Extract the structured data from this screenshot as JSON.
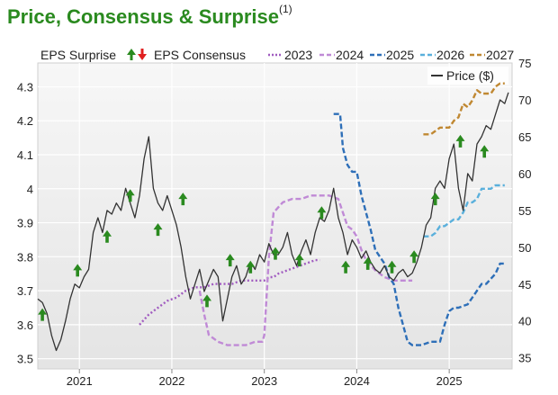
{
  "title": "Price, Consensus & Surprise",
  "title_note": "(1)",
  "chart_data": {
    "type": "line",
    "title": "Price, Consensus & Surprise",
    "legend": {
      "surprise_label": "EPS Surprise",
      "consensus_label": "EPS Consensus",
      "years": [
        "2023",
        "2024",
        "2025",
        "2026",
        "2027"
      ],
      "price_label": "Price ($)",
      "placement": "top"
    },
    "x_ticks": [
      "2021",
      "2022",
      "2023",
      "2024",
      "2025"
    ],
    "x_range": [
      2020.55,
      2025.68
    ],
    "left_axis": {
      "ticks": [
        "3.5",
        "3.6",
        "3.7",
        "3.8",
        "3.9",
        "4",
        "4.1",
        "4.2",
        "4.3"
      ],
      "ylim": [
        3.47,
        4.37
      ]
    },
    "right_axis": {
      "ticks": [
        "35",
        "40",
        "45",
        "50",
        "55",
        "60",
        "65",
        "70",
        "75"
      ],
      "ylim": [
        33.5,
        75
      ]
    },
    "grid": true,
    "colors": {
      "title": "#2a8a1f",
      "price": "#333333",
      "surprise_up": "#2a8a1f",
      "surprise_down": "#e02020",
      "2023": "#a05bc0",
      "2024": "#c08ad6",
      "2025": "#2e6fb8",
      "2026": "#5ab0dc",
      "2027": "#c08832"
    },
    "price_series": {
      "name": "Price ($)",
      "x": [
        2020.55,
        2020.6,
        2020.65,
        2020.7,
        2020.75,
        2020.8,
        2020.85,
        2020.9,
        2020.95,
        2021.0,
        2021.05,
        2021.1,
        2021.15,
        2021.2,
        2021.25,
        2021.3,
        2021.35,
        2021.4,
        2021.45,
        2021.5,
        2021.55,
        2021.6,
        2021.65,
        2021.7,
        2021.75,
        2021.8,
        2021.85,
        2021.9,
        2021.95,
        2022.0,
        2022.05,
        2022.1,
        2022.15,
        2022.2,
        2022.25,
        2022.3,
        2022.35,
        2022.4,
        2022.45,
        2022.5,
        2022.55,
        2022.6,
        2022.65,
        2022.7,
        2022.75,
        2022.8,
        2022.85,
        2022.9,
        2022.95,
        2023.0,
        2023.05,
        2023.1,
        2023.15,
        2023.2,
        2023.25,
        2023.3,
        2023.35,
        2023.4,
        2023.45,
        2023.5,
        2023.55,
        2023.6,
        2023.65,
        2023.7,
        2023.75,
        2023.8,
        2023.85,
        2023.9,
        2023.95,
        2024.0,
        2024.05,
        2024.1,
        2024.15,
        2024.2,
        2024.25,
        2024.3,
        2024.35,
        2024.4,
        2024.45,
        2024.5,
        2024.55,
        2024.6,
        2024.65,
        2024.7,
        2024.75,
        2024.8,
        2024.85,
        2024.9,
        2024.95,
        2025.0,
        2025.05,
        2025.1,
        2025.15,
        2025.2,
        2025.25,
        2025.3,
        2025.35,
        2025.4,
        2025.45,
        2025.5,
        2025.55,
        2025.6,
        2025.64
      ],
      "values": [
        43,
        42.5,
        41,
        38,
        36,
        37.5,
        40,
        43,
        45,
        44.5,
        46,
        47,
        52,
        54,
        52,
        55,
        54.5,
        56,
        55,
        58,
        56,
        54,
        57,
        62,
        65,
        58,
        56,
        55,
        57,
        55,
        53,
        50,
        46,
        43,
        45,
        47,
        44,
        45.5,
        47,
        46,
        40,
        43,
        46,
        47.5,
        45,
        46,
        48,
        47,
        49,
        48,
        50.5,
        49,
        49,
        50,
        52,
        49,
        47.5,
        49.5,
        51,
        49,
        52,
        54,
        53.5,
        55,
        58,
        54,
        52,
        49,
        51,
        50,
        48.5,
        49.5,
        48,
        47,
        46.5,
        47.5,
        46,
        45.5,
        46.5,
        47,
        46,
        46.5,
        48,
        50,
        53,
        54,
        58,
        59,
        58,
        62,
        64,
        58,
        55,
        60,
        59,
        64,
        65,
        66.5,
        66,
        68,
        70,
        69.5,
        71
      ]
    },
    "consensus_series": [
      {
        "name": "2023",
        "style": "dotted",
        "x": [
          2021.65,
          2021.75,
          2021.85,
          2021.95,
          2022.05,
          2022.15,
          2022.25,
          2022.35,
          2022.45,
          2022.55,
          2022.65,
          2022.75,
          2022.85,
          2022.95,
          2023.0,
          2023.05,
          2023.1,
          2023.15,
          2023.25,
          2023.35,
          2023.45,
          2023.55,
          2023.6
        ],
        "values": [
          3.6,
          3.63,
          3.65,
          3.67,
          3.68,
          3.7,
          3.71,
          3.71,
          3.72,
          3.72,
          3.72,
          3.73,
          3.73,
          3.73,
          3.73,
          3.74,
          3.74,
          3.75,
          3.76,
          3.77,
          3.78,
          3.79,
          3.79
        ]
      },
      {
        "name": "2024",
        "style": "dashed",
        "x": [
          2022.3,
          2022.35,
          2022.4,
          2022.5,
          2022.6,
          2022.7,
          2022.8,
          2022.9,
          2022.98,
          2023.0,
          2023.05,
          2023.1,
          2023.2,
          2023.3,
          2023.4,
          2023.5,
          2023.6,
          2023.7,
          2023.8,
          2023.85,
          2023.9,
          2023.95,
          2024.0,
          2024.05,
          2024.1,
          2024.2,
          2024.3,
          2024.4,
          2024.5,
          2024.6
        ],
        "values": [
          3.7,
          3.63,
          3.57,
          3.55,
          3.54,
          3.54,
          3.54,
          3.55,
          3.55,
          3.57,
          3.8,
          3.93,
          3.96,
          3.97,
          3.97,
          3.98,
          3.98,
          3.98,
          3.97,
          3.93,
          3.89,
          3.88,
          3.86,
          3.82,
          3.79,
          3.76,
          3.74,
          3.73,
          3.73,
          3.73
        ]
      },
      {
        "name": "2025",
        "style": "dashed",
        "x": [
          2023.75,
          2023.82,
          2023.85,
          2023.9,
          2023.95,
          2024.0,
          2024.05,
          2024.1,
          2024.15,
          2024.2,
          2024.3,
          2024.35,
          2024.4,
          2024.45,
          2024.5,
          2024.55,
          2024.6,
          2024.7,
          2024.8,
          2024.85,
          2024.9,
          2024.95,
          2025.0,
          2025.05,
          2025.1,
          2025.2,
          2025.3,
          2025.35,
          2025.4,
          2025.5,
          2025.55,
          2025.6
        ],
        "values": [
          4.22,
          4.22,
          4.12,
          4.07,
          4.05,
          4.05,
          3.98,
          3.93,
          3.88,
          3.82,
          3.78,
          3.74,
          3.72,
          3.65,
          3.6,
          3.55,
          3.54,
          3.54,
          3.55,
          3.55,
          3.55,
          3.6,
          3.64,
          3.65,
          3.65,
          3.66,
          3.7,
          3.72,
          3.72,
          3.75,
          3.78,
          3.78
        ]
      },
      {
        "name": "2026",
        "style": "dashed",
        "x": [
          2024.72,
          2024.8,
          2024.85,
          2024.9,
          2024.95,
          2025.0,
          2025.05,
          2025.1,
          2025.15,
          2025.2,
          2025.25,
          2025.3,
          2025.35,
          2025.4,
          2025.45,
          2025.5,
          2025.55,
          2025.6
        ],
        "values": [
          3.86,
          3.86,
          3.87,
          3.89,
          3.89,
          3.9,
          3.91,
          3.91,
          3.93,
          3.96,
          3.96,
          3.97,
          4.0,
          4.0,
          4.0,
          4.01,
          4.01,
          4.01
        ]
      },
      {
        "name": "2027",
        "style": "dashed",
        "x": [
          2024.72,
          2024.8,
          2024.85,
          2024.9,
          2024.95,
          2025.0,
          2025.05,
          2025.1,
          2025.15,
          2025.2,
          2025.25,
          2025.3,
          2025.35,
          2025.4,
          2025.45,
          2025.5,
          2025.55,
          2025.6
        ],
        "values": [
          4.16,
          4.16,
          4.17,
          4.18,
          4.18,
          4.18,
          4.2,
          4.21,
          4.25,
          4.24,
          4.26,
          4.29,
          4.28,
          4.28,
          4.28,
          4.3,
          4.31,
          4.31
        ]
      }
    ],
    "surprise_arrows": [
      {
        "x": 2020.6,
        "y": 3.63,
        "direction": "up"
      },
      {
        "x": 2020.98,
        "y": 3.76,
        "direction": "up"
      },
      {
        "x": 2021.3,
        "y": 3.86,
        "direction": "up"
      },
      {
        "x": 2021.55,
        "y": 3.98,
        "direction": "up"
      },
      {
        "x": 2021.85,
        "y": 3.88,
        "direction": "up"
      },
      {
        "x": 2022.12,
        "y": 3.97,
        "direction": "up"
      },
      {
        "x": 2022.38,
        "y": 3.67,
        "direction": "up"
      },
      {
        "x": 2022.63,
        "y": 3.79,
        "direction": "up"
      },
      {
        "x": 2022.85,
        "y": 3.77,
        "direction": "up"
      },
      {
        "x": 2023.12,
        "y": 3.81,
        "direction": "up"
      },
      {
        "x": 2023.38,
        "y": 3.79,
        "direction": "up"
      },
      {
        "x": 2023.62,
        "y": 3.93,
        "direction": "up"
      },
      {
        "x": 2023.88,
        "y": 3.77,
        "direction": "up"
      },
      {
        "x": 2024.12,
        "y": 3.78,
        "direction": "up"
      },
      {
        "x": 2024.38,
        "y": 3.77,
        "direction": "up"
      },
      {
        "x": 2024.62,
        "y": 3.8,
        "direction": "up"
      },
      {
        "x": 2024.85,
        "y": 3.97,
        "direction": "up"
      },
      {
        "x": 2025.12,
        "y": 4.14,
        "direction": "up"
      },
      {
        "x": 2025.38,
        "y": 4.11,
        "direction": "up"
      }
    ]
  }
}
